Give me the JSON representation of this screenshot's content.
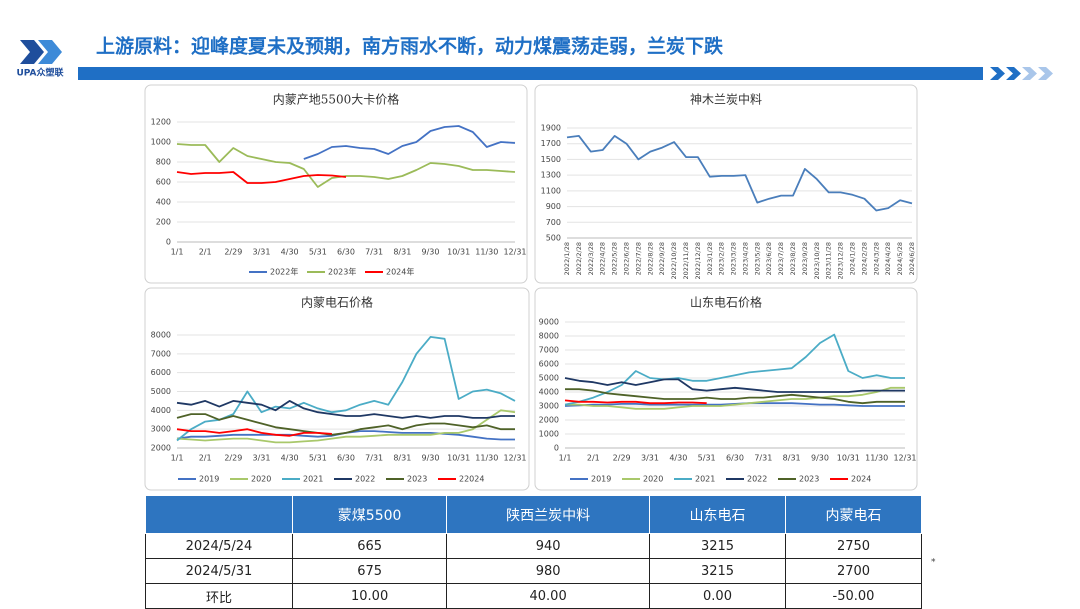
{
  "header": {
    "logo": "UPA众塑联",
    "title": "上游原料：迎峰度夏未及预期，南方雨水不断，动力煤震荡走弱，兰炭下跌",
    "note": "*"
  },
  "chart_data": [
    {
      "type": "line",
      "title": "内蒙产地5500大卡价格",
      "categories": [
        "1/1",
        null,
        "2/1",
        null,
        "2/29",
        null,
        "3/31",
        null,
        "4/30",
        null,
        "5/31",
        null,
        "6/30",
        null,
        "7/31",
        null,
        "8/31",
        null,
        "9/30",
        null,
        "10/31",
        null,
        "11/30",
        null,
        "12/31"
      ],
      "ylim": [
        0,
        1200
      ],
      "yticks": [
        0,
        200,
        400,
        600,
        800,
        1000,
        1200
      ],
      "grid": true,
      "legend": "bottom",
      "series": [
        {
          "name": "2022年",
          "color": "#4472c4",
          "values": [
            null,
            null,
            null,
            null,
            null,
            null,
            null,
            null,
            null,
            830,
            880,
            950,
            960,
            940,
            930,
            880,
            960,
            1000,
            1110,
            1150,
            1160,
            1100,
            950,
            1000,
            990
          ]
        },
        {
          "name": "2023年",
          "color": "#9bbb59",
          "values": [
            980,
            970,
            970,
            800,
            940,
            860,
            830,
            800,
            790,
            730,
            550,
            640,
            660,
            660,
            650,
            630,
            660,
            720,
            790,
            780,
            760,
            720,
            720,
            710,
            700
          ]
        },
        {
          "name": "2024年",
          "color": "#ff0000",
          "values": [
            700,
            680,
            690,
            690,
            700,
            590,
            590,
            600,
            630,
            660,
            670,
            665,
            650,
            null,
            null,
            null,
            null,
            null,
            null,
            null,
            null,
            null,
            null,
            null,
            null
          ]
        }
      ]
    },
    {
      "type": "line",
      "title": "神木兰炭中料",
      "categories": [
        "2022/1/28",
        "2022/2/28",
        "2022/3/28",
        "2022/4/28",
        "2022/5/28",
        "2022/6/28",
        "2022/7/28",
        "2022/8/28",
        "2022/9/28",
        "2022/10/28",
        "2022/11/28",
        "2022/12/28",
        "2023/1/28",
        "2023/2/28",
        "2023/3/28",
        "2023/4/28",
        "2023/5/28",
        "2023/6/28",
        "2023/7/28",
        "2023/8/28",
        "2023/9/28",
        "2023/10/28",
        "2023/11/28",
        "2023/12/28",
        "2024/1/28",
        "2024/2/28",
        "2024/3/28",
        "2024/4/28",
        "2024/5/28",
        "2024/6/28"
      ],
      "ylim": [
        500,
        1900
      ],
      "yticks": [
        500,
        700,
        900,
        1100,
        1300,
        1500,
        1700,
        1900
      ],
      "grid": true,
      "color": "#4a7ebb",
      "values": [
        1780,
        1800,
        1600,
        1620,
        1800,
        1700,
        1500,
        1600,
        1650,
        1720,
        1530,
        1530,
        1280,
        1290,
        1290,
        1300,
        950,
        1000,
        1040,
        1040,
        1380,
        1250,
        1080,
        1080,
        1050,
        1000,
        850,
        880,
        980,
        940
      ]
    },
    {
      "type": "line",
      "title": "内蒙电石价格",
      "categories": [
        "1/1",
        null,
        "2/1",
        null,
        "2/29",
        null,
        "3/31",
        null,
        "4/30",
        null,
        "5/31",
        null,
        "6/30",
        null,
        "7/31",
        null,
        "8/31",
        null,
        "9/30",
        null,
        "10/31",
        null,
        "11/30",
        null,
        "12/31"
      ],
      "ylim": [
        2000,
        8000
      ],
      "yticks": [
        2000,
        3000,
        4000,
        5000,
        6000,
        7000,
        8000
      ],
      "grid": true,
      "legend": "bottom",
      "series": [
        {
          "name": "2019",
          "color": "#4472c4",
          "values": [
            2500,
            2600,
            2600,
            2650,
            2700,
            2700,
            2700,
            2700,
            2700,
            2650,
            2600,
            2650,
            2800,
            2900,
            2900,
            2850,
            2800,
            2800,
            2800,
            2750,
            2700,
            2600,
            2500,
            2450,
            2450
          ]
        },
        {
          "name": "2020",
          "color": "#a9c86b",
          "values": [
            2500,
            2450,
            2400,
            2450,
            2500,
            2500,
            2400,
            2300,
            2300,
            2350,
            2400,
            2500,
            2600,
            2600,
            2650,
            2700,
            2700,
            2700,
            2700,
            2800,
            2800,
            3000,
            3500,
            4000,
            3900
          ]
        },
        {
          "name": "2021",
          "color": "#4bacc6",
          "values": [
            2400,
            3000,
            3400,
            3500,
            3800,
            5000,
            3900,
            4200,
            4100,
            4400,
            4100,
            3900,
            4000,
            4300,
            4500,
            4300,
            5500,
            7000,
            7900,
            7800,
            4600,
            5000,
            5100,
            4900,
            4500
          ]
        },
        {
          "name": "2022",
          "color": "#1f3864",
          "values": [
            4400,
            4300,
            4500,
            4200,
            4500,
            4400,
            4300,
            4000,
            4500,
            4100,
            3900,
            3800,
            3700,
            3700,
            3800,
            3700,
            3600,
            3700,
            3600,
            3700,
            3700,
            3600,
            3600,
            3700,
            3700
          ]
        },
        {
          "name": "2023",
          "color": "#4f6228",
          "values": [
            3600,
            3800,
            3800,
            3500,
            3700,
            3500,
            3300,
            3100,
            3000,
            2900,
            2800,
            2700,
            2800,
            3000,
            3100,
            3200,
            3000,
            3200,
            3300,
            3300,
            3200,
            3100,
            3200,
            3000,
            3000
          ]
        },
        {
          "name": "22024",
          "color": "#ff0000",
          "values": [
            3000,
            2900,
            2900,
            2800,
            2900,
            3000,
            2800,
            2700,
            2650,
            2800,
            2800,
            2750,
            null,
            null,
            null,
            null,
            null,
            null,
            null,
            null,
            null,
            null,
            null,
            null,
            null
          ]
        }
      ]
    },
    {
      "type": "line",
      "title": "山东电石价格",
      "categories": [
        "1/1",
        null,
        "2/1",
        null,
        "2/29",
        null,
        "3/31",
        null,
        "4/30",
        null,
        "5/31",
        null,
        "6/30",
        null,
        "7/31",
        null,
        "8/31",
        null,
        "9/30",
        null,
        "10/31",
        null,
        "11/30",
        null,
        "12/31"
      ],
      "ylim": [
        0,
        9000
      ],
      "yticks": [
        0,
        1000,
        2000,
        3000,
        4000,
        5000,
        6000,
        7000,
        8000,
        9000
      ],
      "grid": true,
      "legend": "bottom",
      "series": [
        {
          "name": "2019",
          "color": "#4472c4",
          "values": [
            3000,
            3050,
            3100,
            3100,
            3150,
            3150,
            3100,
            3100,
            3100,
            3100,
            3100,
            3100,
            3150,
            3200,
            3200,
            3200,
            3200,
            3150,
            3100,
            3100,
            3050,
            3000,
            3000,
            3000,
            3000
          ]
        },
        {
          "name": "2020",
          "color": "#a9c86b",
          "values": [
            3100,
            3100,
            3000,
            3000,
            2900,
            2800,
            2800,
            2800,
            2900,
            3000,
            3000,
            3000,
            3100,
            3200,
            3300,
            3400,
            3500,
            3500,
            3600,
            3700,
            3700,
            3800,
            4000,
            4300,
            4300
          ]
        },
        {
          "name": "2021",
          "color": "#4bacc6",
          "values": [
            3100,
            3300,
            3600,
            4000,
            4500,
            5500,
            5000,
            4900,
            5000,
            4800,
            4800,
            5000,
            5200,
            5400,
            5500,
            5600,
            5700,
            6500,
            7500,
            8100,
            5500,
            5000,
            5200,
            5000,
            5000
          ]
        },
        {
          "name": "2022",
          "color": "#1f3864",
          "values": [
            5000,
            4800,
            4700,
            4500,
            4700,
            4500,
            4700,
            4900,
            4900,
            4200,
            4100,
            4200,
            4300,
            4200,
            4100,
            4000,
            4000,
            4000,
            4000,
            4000,
            4000,
            4100,
            4100,
            4100,
            4100
          ]
        },
        {
          "name": "2023",
          "color": "#4f6228",
          "values": [
            4200,
            4200,
            4100,
            3900,
            3800,
            3700,
            3600,
            3500,
            3500,
            3500,
            3600,
            3500,
            3500,
            3600,
            3600,
            3700,
            3800,
            3700,
            3600,
            3500,
            3300,
            3200,
            3300,
            3300,
            3300
          ]
        },
        {
          "name": "2024",
          "color": "#ff0000",
          "values": [
            3400,
            3300,
            3300,
            3250,
            3300,
            3300,
            3200,
            3200,
            3250,
            3250,
            3200,
            null,
            null,
            null,
            null,
            null,
            null,
            null,
            null,
            null,
            null,
            null,
            null,
            null,
            null
          ]
        }
      ]
    }
  ],
  "table": {
    "columns": [
      "蒙煤5500",
      "陕西兰炭中料",
      "山东电石",
      "内蒙电石"
    ],
    "rows": [
      [
        "2024/5/24",
        "665",
        "940",
        "3215",
        "2750"
      ],
      [
        "2024/5/31",
        "675",
        "980",
        "3215",
        "2700"
      ],
      [
        "环比",
        "10.00",
        "40.00",
        "0.00",
        "-50.00"
      ]
    ]
  }
}
